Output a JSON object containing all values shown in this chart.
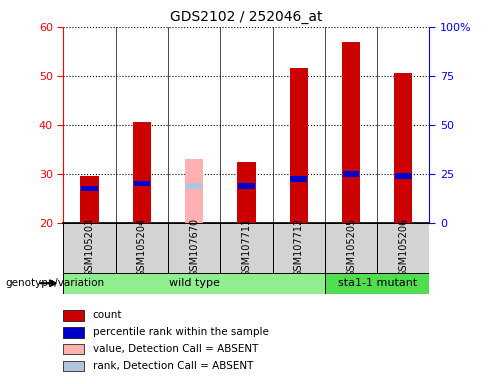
{
  "title": "GDS2102 / 252046_at",
  "samples": [
    "GSM105203",
    "GSM105204",
    "GSM107670",
    "GSM107711",
    "GSM107712",
    "GSM105205",
    "GSM105206"
  ],
  "count_values": [
    29.5,
    40.5,
    null,
    32.5,
    51.5,
    57.0,
    50.5
  ],
  "rank_values": [
    27.0,
    28.0,
    null,
    27.5,
    29.0,
    30.0,
    29.5
  ],
  "absent_value_values": [
    null,
    null,
    33.0,
    null,
    null,
    null,
    null
  ],
  "absent_rank_values": [
    null,
    null,
    27.5,
    null,
    null,
    null,
    null
  ],
  "ylim": [
    20,
    60
  ],
  "y2lim": [
    0,
    100
  ],
  "yticks": [
    20,
    30,
    40,
    50,
    60
  ],
  "y2ticks": [
    0,
    25,
    50,
    75,
    100
  ],
  "y2tick_labels": [
    "0",
    "25",
    "50",
    "75",
    "100%"
  ],
  "n_wild": 5,
  "n_mutant": 2,
  "bar_width": 0.35,
  "count_color": "#cc0000",
  "rank_color": "#0000cc",
  "absent_value_color": "#ffb0b0",
  "absent_rank_color": "#b0c4de",
  "wild_type_bg": "#90EE90",
  "mutant_bg": "#50DD50",
  "label_bg": "#d3d3d3",
  "genotype_label": "genotype/variation",
  "wild_type_label": "wild type",
  "mutant_label": "sta1-1 mutant",
  "legend_labels": [
    "count",
    "percentile rank within the sample",
    "value, Detection Call = ABSENT",
    "rank, Detection Call = ABSENT"
  ],
  "legend_colors": [
    "#cc0000",
    "#0000cc",
    "#ffb0b0",
    "#b0c4de"
  ]
}
